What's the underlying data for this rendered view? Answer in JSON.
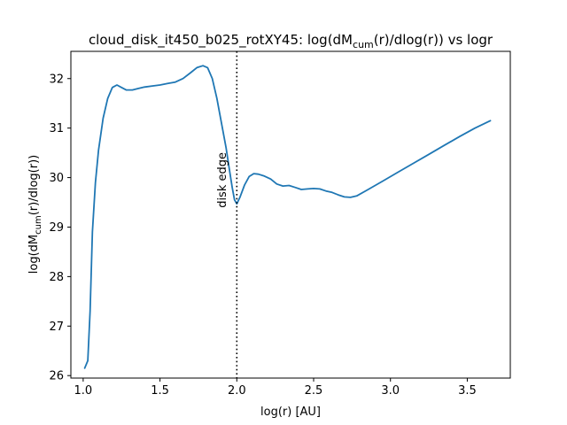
{
  "chart_data": {
    "type": "line",
    "title_main": "cloud_disk_it450_b025_rotXY45: log(dM",
    "title_sub": "cum",
    "title_tail": "(r)/dlog(r)) vs logr",
    "xlabel": "log(r) [AU]",
    "ylabel_main": "log(dM",
    "ylabel_sub": "cum",
    "ylabel_tail": "(r)/dlog(r))",
    "xlim": [
      0.92,
      3.78
    ],
    "ylim": [
      25.95,
      32.55
    ],
    "xticks": [
      1.0,
      1.5,
      2.0,
      2.5,
      3.0,
      3.5
    ],
    "xtick_labels": [
      "1.0",
      "1.5",
      "2.0",
      "2.5",
      "3.0",
      "3.5"
    ],
    "yticks": [
      26,
      27,
      28,
      29,
      30,
      31,
      32
    ],
    "ytick_labels": [
      "26",
      "27",
      "28",
      "29",
      "30",
      "31",
      "32"
    ],
    "grid": false,
    "series_color": "#1f77b4",
    "series": [
      {
        "x": [
          1.01,
          1.03,
          1.045,
          1.06,
          1.08,
          1.1,
          1.13,
          1.16,
          1.19,
          1.22,
          1.25,
          1.28,
          1.32,
          1.36,
          1.4,
          1.45,
          1.5,
          1.55,
          1.6,
          1.65,
          1.7,
          1.74,
          1.78,
          1.81,
          1.84,
          1.87,
          1.9,
          1.93,
          1.95,
          1.97,
          1.985,
          2.0,
          2.02,
          2.05,
          2.08,
          2.11,
          2.14,
          2.18,
          2.22,
          2.26,
          2.3,
          2.34,
          2.38,
          2.42,
          2.46,
          2.5,
          2.54,
          2.58,
          2.62,
          2.66,
          2.7,
          2.74,
          2.78,
          2.85,
          2.95,
          3.05,
          3.15,
          3.25,
          3.35,
          3.45,
          3.55,
          3.65
        ],
        "y": [
          26.15,
          26.3,
          27.3,
          28.9,
          29.9,
          30.55,
          31.2,
          31.6,
          31.82,
          31.87,
          31.82,
          31.77,
          31.77,
          31.8,
          31.83,
          31.85,
          31.87,
          31.9,
          31.93,
          32.0,
          32.12,
          32.22,
          32.26,
          32.22,
          32.0,
          31.6,
          31.1,
          30.6,
          30.2,
          29.8,
          29.55,
          29.47,
          29.6,
          29.85,
          30.02,
          30.08,
          30.07,
          30.03,
          29.97,
          29.87,
          29.83,
          29.84,
          29.8,
          29.76,
          29.77,
          29.78,
          29.77,
          29.73,
          29.7,
          29.65,
          29.61,
          29.6,
          29.63,
          29.75,
          29.93,
          30.11,
          30.29,
          30.47,
          30.65,
          30.83,
          31.0,
          31.15
        ]
      }
    ],
    "annotations": [
      {
        "type": "vline",
        "x": 2.0,
        "style": "dotted"
      },
      {
        "type": "text",
        "text": "disk edge",
        "x": 1.93,
        "y": 29.95,
        "rotation": 90
      }
    ]
  }
}
